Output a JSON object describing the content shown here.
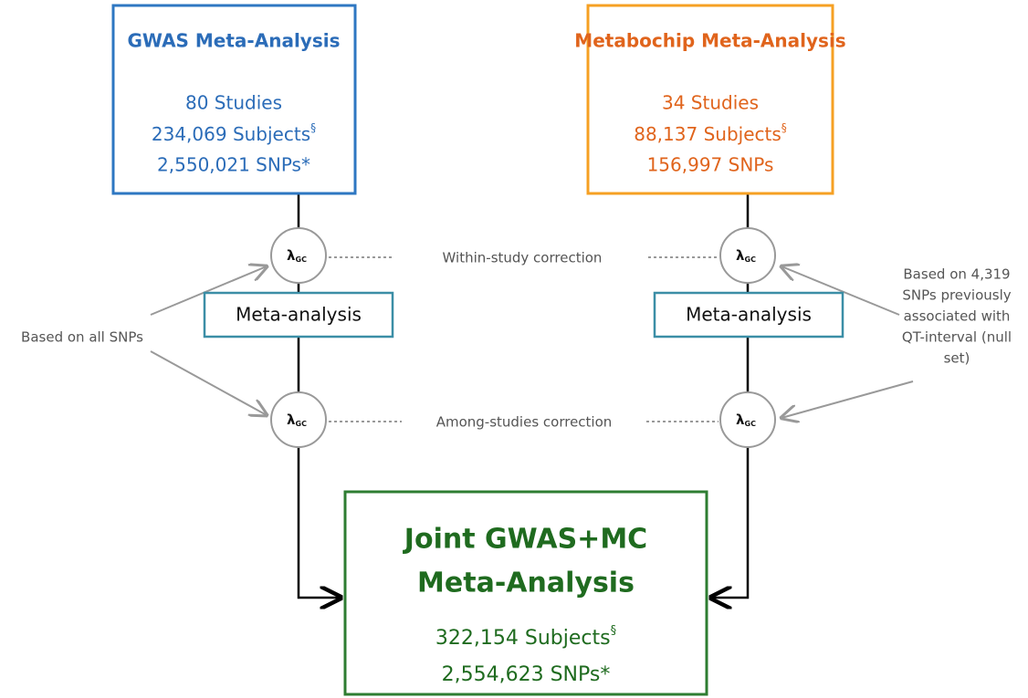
{
  "gwas_box": {
    "title": "GWAS Meta-Analysis",
    "studies": "80 Studies",
    "subjects": "234,069 Subjects",
    "subjects_mark": "§",
    "snps": "2,550,021 SNPs*"
  },
  "metabochip_box": {
    "title": "Metabochip Meta-Analysis",
    "studies": "34 Studies",
    "subjects": "88,137 Subjects",
    "subjects_mark": "§",
    "snps": "156,997 SNPs"
  },
  "circles": [
    {
      "symbol": "λ",
      "subscript": "GC"
    },
    {
      "symbol": "λ",
      "subscript": "GC"
    },
    {
      "symbol": "λ",
      "subscript": "GC"
    },
    {
      "symbol": "λ",
      "subscript": "GC"
    }
  ],
  "meta_boxes": [
    "Meta-analysis",
    "Meta-analysis"
  ],
  "corrections": [
    "Within-study correction",
    "Among-studies correction"
  ],
  "left_note": "Based on all SNPs",
  "right_note": [
    "Based on 4,319",
    "SNPs previously",
    "associated with",
    "QT-interval (null",
    "set)"
  ],
  "joint_box": {
    "title_lines": [
      "Joint GWAS+MC",
      "Meta-Analysis"
    ],
    "subjects": "322,154 Subjects",
    "subjects_mark": "§",
    "snps": "2,554,623 SNPs*"
  }
}
